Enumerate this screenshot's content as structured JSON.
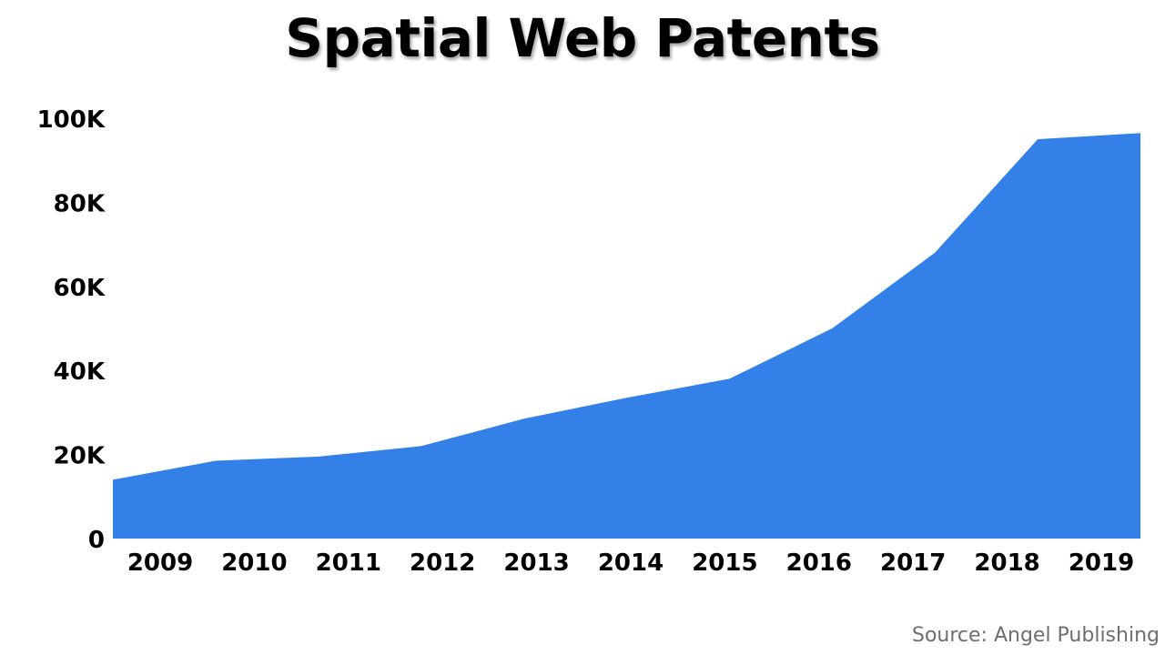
{
  "chart_data": {
    "type": "area",
    "title": "Spatial Web Patents",
    "categories": [
      "2009",
      "2010",
      "2011",
      "2012",
      "2013",
      "2014",
      "2015",
      "2016",
      "2017",
      "2018",
      "2019"
    ],
    "values": [
      14000,
      18500,
      19500,
      22000,
      28500,
      33500,
      38000,
      50000,
      68000,
      95000,
      96500
    ],
    "y_ticks": [
      "0",
      "20K",
      "40K",
      "60K",
      "80K",
      "100K"
    ],
    "ylim": [
      0,
      100000
    ],
    "grid": false,
    "legend": "none",
    "color": "#3381E8"
  },
  "source": "Source: Angel Publishing"
}
